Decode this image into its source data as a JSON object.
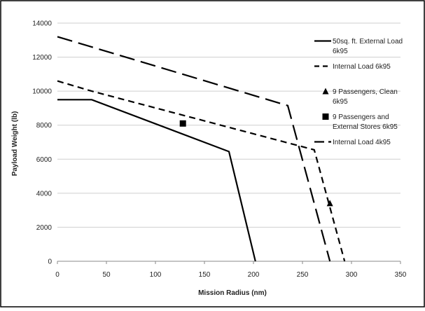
{
  "chart_data": {
    "type": "line",
    "xlabel": "Mission Radius (nm)",
    "ylabel": "Payload Weight (lb)",
    "xlim": [
      0,
      350
    ],
    "ylim": [
      0,
      14000
    ],
    "x_ticks": [
      0,
      50,
      100,
      150,
      200,
      250,
      300,
      350
    ],
    "y_ticks": [
      0,
      2000,
      4000,
      6000,
      8000,
      10000,
      12000,
      14000
    ],
    "grid": "horizontal",
    "legend_position": "right",
    "series": [
      {
        "name": "50sq. ft. External Load 6k95",
        "style": "solid",
        "color": "#000000",
        "x": [
          0,
          35,
          175,
          202
        ],
        "y": [
          9500,
          9500,
          6450,
          0
        ]
      },
      {
        "name": "Internal Load 6k95",
        "style": "short-dash",
        "color": "#000000",
        "x": [
          0,
          35,
          262,
          293
        ],
        "y": [
          10600,
          10000,
          6550,
          0
        ]
      },
      {
        "name": "Internal Load 4k95",
        "style": "long-dash",
        "color": "#000000",
        "x": [
          0,
          235,
          278
        ],
        "y": [
          13200,
          9150,
          0
        ]
      }
    ],
    "points": [
      {
        "name": "9 Passengers, Clean 6k95",
        "marker": "triangle",
        "x": [
          278
        ],
        "y": [
          3400
        ]
      },
      {
        "name": "9 Passengers and External Stores 6k95",
        "marker": "square",
        "x": [
          128
        ],
        "y": [
          8100
        ]
      }
    ],
    "legend": [
      {
        "lines": [
          "50sq. ft. External Load",
          "6k95"
        ],
        "symbol": "solid"
      },
      {
        "lines": [
          "Internal Load 6k95"
        ],
        "symbol": "short-dash"
      },
      {
        "lines": [
          "9 Passengers, Clean",
          "6k95"
        ],
        "symbol": "triangle"
      },
      {
        "lines": [
          "9 Passengers and",
          "External Stores 6k95"
        ],
        "symbol": "square"
      },
      {
        "lines": [
          "Internal Load 4k95"
        ],
        "symbol": "long-dash"
      }
    ]
  }
}
